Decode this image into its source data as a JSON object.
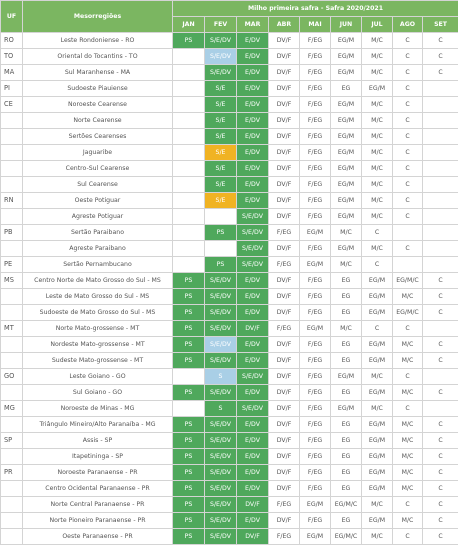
{
  "header": {
    "uf": "UF",
    "mesorregioes": "Mesorregiões",
    "title": "Milho primeira safra - Safra 2020/2021",
    "months": [
      "JAN",
      "FEV",
      "MAR",
      "ABR",
      "MAI",
      "JUN",
      "JUL",
      "AGO",
      "SET"
    ]
  },
  "colors": {
    "green": "#4fa85c",
    "yellow": "#f0b323",
    "blue": "#a9cfe6",
    "header_green": "#7bb661"
  },
  "rows": [
    {
      "uf": "RO",
      "meso": "Leste Rondoniense - RO",
      "cells": [
        [
          "PS",
          "g"
        ],
        [
          "S/E/DV",
          "g"
        ],
        [
          "E/DV",
          "g"
        ],
        [
          "DV/F",
          "w"
        ],
        [
          "F/EG",
          "w"
        ],
        [
          "EG/M",
          "w"
        ],
        [
          "M/C",
          "w"
        ],
        [
          "C",
          "w"
        ],
        [
          "C",
          "w"
        ]
      ]
    },
    {
      "uf": "TO",
      "meso": "Oriental do Tocantins - TO",
      "cells": [
        [
          "",
          "w"
        ],
        [
          "S/E/DV",
          "b"
        ],
        [
          "E/DV",
          "g"
        ],
        [
          "DV/F",
          "w"
        ],
        [
          "F/EG",
          "w"
        ],
        [
          "EG/M",
          "w"
        ],
        [
          "M/C",
          "w"
        ],
        [
          "C",
          "w"
        ],
        [
          "C",
          "w"
        ]
      ]
    },
    {
      "uf": "MA",
      "meso": "Sul Maranhense - MA",
      "cells": [
        [
          "",
          "w"
        ],
        [
          "S/E/DV",
          "g"
        ],
        [
          "E/DV",
          "g"
        ],
        [
          "DV/F",
          "w"
        ],
        [
          "F/EG",
          "w"
        ],
        [
          "EG/M",
          "w"
        ],
        [
          "M/C",
          "w"
        ],
        [
          "C",
          "w"
        ],
        [
          "C",
          "w"
        ]
      ]
    },
    {
      "uf": "PI",
      "meso": "Sudoeste Piauiense",
      "cells": [
        [
          "",
          "w"
        ],
        [
          "S/E",
          "g"
        ],
        [
          "E/DV",
          "g"
        ],
        [
          "DV/F",
          "w"
        ],
        [
          "F/EG",
          "w"
        ],
        [
          "EG",
          "w"
        ],
        [
          "EG/M",
          "w"
        ],
        [
          "C",
          "w"
        ],
        [
          "",
          "w"
        ]
      ]
    },
    {
      "uf": "CE",
      "meso": "Noroeste Cearense",
      "cells": [
        [
          "",
          "w"
        ],
        [
          "S/E",
          "g"
        ],
        [
          "E/DV",
          "g"
        ],
        [
          "DV/F",
          "w"
        ],
        [
          "F/EG",
          "w"
        ],
        [
          "EG/M",
          "w"
        ],
        [
          "M/C",
          "w"
        ],
        [
          "C",
          "w"
        ],
        [
          "",
          "w"
        ]
      ]
    },
    {
      "uf": "",
      "meso": "Norte Cearense",
      "cells": [
        [
          "",
          "w"
        ],
        [
          "S/E",
          "g"
        ],
        [
          "E/DV",
          "g"
        ],
        [
          "DV/F",
          "w"
        ],
        [
          "F/EG",
          "w"
        ],
        [
          "EG/M",
          "w"
        ],
        [
          "M/C",
          "w"
        ],
        [
          "C",
          "w"
        ],
        [
          "",
          "w"
        ]
      ]
    },
    {
      "uf": "",
      "meso": "Sertões Cearenses",
      "cells": [
        [
          "",
          "w"
        ],
        [
          "S/E",
          "g"
        ],
        [
          "E/DV",
          "g"
        ],
        [
          "DV/F",
          "w"
        ],
        [
          "F/EG",
          "w"
        ],
        [
          "EG/M",
          "w"
        ],
        [
          "M/C",
          "w"
        ],
        [
          "C",
          "w"
        ],
        [
          "",
          "w"
        ]
      ]
    },
    {
      "uf": "",
      "meso": "Jaguaribe",
      "cells": [
        [
          "",
          "w"
        ],
        [
          "S/E",
          "y"
        ],
        [
          "E/DV",
          "g"
        ],
        [
          "DV/F",
          "w"
        ],
        [
          "F/EG",
          "w"
        ],
        [
          "EG/M",
          "w"
        ],
        [
          "M/C",
          "w"
        ],
        [
          "C",
          "w"
        ],
        [
          "",
          "w"
        ]
      ]
    },
    {
      "uf": "",
      "meso": "Centro-Sul Cearense",
      "cells": [
        [
          "",
          "w"
        ],
        [
          "S/E",
          "g"
        ],
        [
          "E/DV",
          "g"
        ],
        [
          "DV/F",
          "w"
        ],
        [
          "F/EG",
          "w"
        ],
        [
          "EG/M",
          "w"
        ],
        [
          "M/C",
          "w"
        ],
        [
          "C",
          "w"
        ],
        [
          "",
          "w"
        ]
      ]
    },
    {
      "uf": "",
      "meso": "Sul Cearense",
      "cells": [
        [
          "",
          "w"
        ],
        [
          "S/E",
          "g"
        ],
        [
          "E/DV",
          "g"
        ],
        [
          "DV/F",
          "w"
        ],
        [
          "F/EG",
          "w"
        ],
        [
          "EG/M",
          "w"
        ],
        [
          "M/C",
          "w"
        ],
        [
          "C",
          "w"
        ],
        [
          "",
          "w"
        ]
      ]
    },
    {
      "uf": "RN",
      "meso": "Oeste Potiguar",
      "cells": [
        [
          "",
          "w"
        ],
        [
          "S/E",
          "y"
        ],
        [
          "E/DV",
          "g"
        ],
        [
          "DV/F",
          "w"
        ],
        [
          "F/EG",
          "w"
        ],
        [
          "EG/M",
          "w"
        ],
        [
          "M/C",
          "w"
        ],
        [
          "C",
          "w"
        ],
        [
          "",
          "w"
        ]
      ]
    },
    {
      "uf": "",
      "meso": "Agreste Potiguar",
      "cells": [
        [
          "",
          "w"
        ],
        [
          "",
          "w"
        ],
        [
          "S/E/DV",
          "g"
        ],
        [
          "DV/F",
          "w"
        ],
        [
          "F/EG",
          "w"
        ],
        [
          "EG/M",
          "w"
        ],
        [
          "M/C",
          "w"
        ],
        [
          "C",
          "w"
        ],
        [
          "",
          "w"
        ]
      ]
    },
    {
      "uf": "PB",
      "meso": "Sertão Paraibano",
      "cells": [
        [
          "",
          "w"
        ],
        [
          "PS",
          "g"
        ],
        [
          "S/E/DV",
          "g"
        ],
        [
          "F/EG",
          "w"
        ],
        [
          "EG/M",
          "w"
        ],
        [
          "M/C",
          "w"
        ],
        [
          "C",
          "w"
        ],
        [
          "",
          "w"
        ],
        [
          "",
          "w"
        ]
      ]
    },
    {
      "uf": "",
      "meso": "Agreste Paraibano",
      "cells": [
        [
          "",
          "w"
        ],
        [
          "",
          "w"
        ],
        [
          "S/E/DV",
          "g"
        ],
        [
          "DV/F",
          "w"
        ],
        [
          "F/EG",
          "w"
        ],
        [
          "EG/M",
          "w"
        ],
        [
          "M/C",
          "w"
        ],
        [
          "C",
          "w"
        ],
        [
          "",
          "w"
        ]
      ]
    },
    {
      "uf": "PE",
      "meso": "Sertão Pernambucano",
      "cells": [
        [
          "",
          "w"
        ],
        [
          "PS",
          "g"
        ],
        [
          "S/E/DV",
          "g"
        ],
        [
          "F/EG",
          "w"
        ],
        [
          "EG/M",
          "w"
        ],
        [
          "M/C",
          "w"
        ],
        [
          "C",
          "w"
        ],
        [
          "",
          "w"
        ],
        [
          "",
          "w"
        ]
      ]
    },
    {
      "uf": "MS",
      "meso": "Centro Norte de Mato Grosso do Sul - MS",
      "cells": [
        [
          "PS",
          "g"
        ],
        [
          "S/E/DV",
          "g"
        ],
        [
          "E/DV",
          "g"
        ],
        [
          "DV/F",
          "w"
        ],
        [
          "F/EG",
          "w"
        ],
        [
          "EG",
          "w"
        ],
        [
          "EG/M",
          "w"
        ],
        [
          "EG/M/C",
          "w"
        ],
        [
          "C",
          "w"
        ]
      ]
    },
    {
      "uf": "",
      "meso": "Leste de Mato Grosso do Sul - MS",
      "cells": [
        [
          "PS",
          "g"
        ],
        [
          "S/E/DV",
          "g"
        ],
        [
          "E/DV",
          "g"
        ],
        [
          "DV/F",
          "w"
        ],
        [
          "F/EG",
          "w"
        ],
        [
          "EG",
          "w"
        ],
        [
          "EG/M",
          "w"
        ],
        [
          "M/C",
          "w"
        ],
        [
          "C",
          "w"
        ]
      ]
    },
    {
      "uf": "",
      "meso": "Sudoeste de Mato Grosso do Sul - MS",
      "cells": [
        [
          "PS",
          "g"
        ],
        [
          "S/E/DV",
          "g"
        ],
        [
          "E/DV",
          "g"
        ],
        [
          "DV/F",
          "w"
        ],
        [
          "F/EG",
          "w"
        ],
        [
          "EG",
          "w"
        ],
        [
          "EG/M",
          "w"
        ],
        [
          "EG/M/C",
          "w"
        ],
        [
          "C",
          "w"
        ]
      ]
    },
    {
      "uf": "MT",
      "meso": "Norte Mato-grossense - MT",
      "cells": [
        [
          "PS",
          "g"
        ],
        [
          "S/E/DV",
          "g"
        ],
        [
          "DV/F",
          "g"
        ],
        [
          "F/EG",
          "w"
        ],
        [
          "EG/M",
          "w"
        ],
        [
          "M/C",
          "w"
        ],
        [
          "C",
          "w"
        ],
        [
          "C",
          "w"
        ],
        [
          "",
          "w"
        ]
      ]
    },
    {
      "uf": "",
      "meso": "Nordeste Mato-grossense - MT",
      "cells": [
        [
          "PS",
          "g"
        ],
        [
          "S/E/DV",
          "b"
        ],
        [
          "E/DV",
          "g"
        ],
        [
          "DV/F",
          "w"
        ],
        [
          "F/EG",
          "w"
        ],
        [
          "EG",
          "w"
        ],
        [
          "EG/M",
          "w"
        ],
        [
          "M/C",
          "w"
        ],
        [
          "C",
          "w"
        ]
      ]
    },
    {
      "uf": "",
      "meso": "Sudeste Mato-grossense - MT",
      "cells": [
        [
          "PS",
          "g"
        ],
        [
          "S/E/DV",
          "g"
        ],
        [
          "E/DV",
          "g"
        ],
        [
          "DV/F",
          "w"
        ],
        [
          "F/EG",
          "w"
        ],
        [
          "EG",
          "w"
        ],
        [
          "EG/M",
          "w"
        ],
        [
          "M/C",
          "w"
        ],
        [
          "C",
          "w"
        ]
      ]
    },
    {
      "uf": "GO",
      "meso": "Leste Goiano - GO",
      "cells": [
        [
          "",
          "w"
        ],
        [
          "S",
          "b"
        ],
        [
          "S/E/DV",
          "g"
        ],
        [
          "DV/F",
          "w"
        ],
        [
          "F/EG",
          "w"
        ],
        [
          "EG/M",
          "w"
        ],
        [
          "M/C",
          "w"
        ],
        [
          "C",
          "w"
        ],
        [
          "",
          "w"
        ]
      ]
    },
    {
      "uf": "",
      "meso": "Sul Goiano - GO",
      "cells": [
        [
          "PS",
          "g"
        ],
        [
          "S/E/DV",
          "g"
        ],
        [
          "E/DV",
          "g"
        ],
        [
          "DV/F",
          "w"
        ],
        [
          "F/EG",
          "w"
        ],
        [
          "EG",
          "w"
        ],
        [
          "EG/M",
          "w"
        ],
        [
          "M/C",
          "w"
        ],
        [
          "C",
          "w"
        ]
      ]
    },
    {
      "uf": "MG",
      "meso": "Noroeste de Minas - MG",
      "cells": [
        [
          "",
          "w"
        ],
        [
          "S",
          "g"
        ],
        [
          "S/E/DV",
          "g"
        ],
        [
          "DV/F",
          "w"
        ],
        [
          "F/EG",
          "w"
        ],
        [
          "EG/M",
          "w"
        ],
        [
          "M/C",
          "w"
        ],
        [
          "C",
          "w"
        ],
        [
          "",
          "w"
        ]
      ]
    },
    {
      "uf": "",
      "meso": "Triângulo Mineiro/Alto Paranaíba - MG",
      "cells": [
        [
          "PS",
          "g"
        ],
        [
          "S/E/DV",
          "g"
        ],
        [
          "E/DV",
          "g"
        ],
        [
          "DV/F",
          "w"
        ],
        [
          "F/EG",
          "w"
        ],
        [
          "EG",
          "w"
        ],
        [
          "EG/M",
          "w"
        ],
        [
          "M/C",
          "w"
        ],
        [
          "C",
          "w"
        ]
      ]
    },
    {
      "uf": "SP",
      "meso": "Assis - SP",
      "cells": [
        [
          "PS",
          "g"
        ],
        [
          "S/E/DV",
          "g"
        ],
        [
          "E/DV",
          "g"
        ],
        [
          "DV/F",
          "w"
        ],
        [
          "F/EG",
          "w"
        ],
        [
          "EG",
          "w"
        ],
        [
          "EG/M",
          "w"
        ],
        [
          "M/C",
          "w"
        ],
        [
          "C",
          "w"
        ]
      ]
    },
    {
      "uf": "",
      "meso": "Itapetininga - SP",
      "cells": [
        [
          "PS",
          "g"
        ],
        [
          "S/E/DV",
          "g"
        ],
        [
          "E/DV",
          "g"
        ],
        [
          "DV/F",
          "w"
        ],
        [
          "F/EG",
          "w"
        ],
        [
          "EG",
          "w"
        ],
        [
          "EG/M",
          "w"
        ],
        [
          "M/C",
          "w"
        ],
        [
          "C",
          "w"
        ]
      ]
    },
    {
      "uf": "PR",
      "meso": "Noroeste Paranaense - PR",
      "cells": [
        [
          "PS",
          "g"
        ],
        [
          "S/E/DV",
          "g"
        ],
        [
          "E/DV",
          "g"
        ],
        [
          "DV/F",
          "w"
        ],
        [
          "F/EG",
          "w"
        ],
        [
          "EG",
          "w"
        ],
        [
          "EG/M",
          "w"
        ],
        [
          "M/C",
          "w"
        ],
        [
          "C",
          "w"
        ]
      ]
    },
    {
      "uf": "",
      "meso": "Centro Ocidental Paranaense - PR",
      "cells": [
        [
          "PS",
          "g"
        ],
        [
          "S/E/DV",
          "g"
        ],
        [
          "E/DV",
          "g"
        ],
        [
          "DV/F",
          "w"
        ],
        [
          "F/EG",
          "w"
        ],
        [
          "EG",
          "w"
        ],
        [
          "EG/M",
          "w"
        ],
        [
          "M/C",
          "w"
        ],
        [
          "C",
          "w"
        ]
      ]
    },
    {
      "uf": "",
      "meso": "Norte Central Paranaense - PR",
      "cells": [
        [
          "PS",
          "g"
        ],
        [
          "S/E/DV",
          "g"
        ],
        [
          "DV/F",
          "g"
        ],
        [
          "F/EG",
          "w"
        ],
        [
          "EG/M",
          "w"
        ],
        [
          "EG/M/C",
          "w"
        ],
        [
          "M/C",
          "w"
        ],
        [
          "C",
          "w"
        ],
        [
          "C",
          "w"
        ]
      ]
    },
    {
      "uf": "",
      "meso": "Norte Pioneiro Paranaense - PR",
      "cells": [
        [
          "PS",
          "g"
        ],
        [
          "S/E/DV",
          "g"
        ],
        [
          "E/DV",
          "g"
        ],
        [
          "DV/F",
          "w"
        ],
        [
          "F/EG",
          "w"
        ],
        [
          "EG",
          "w"
        ],
        [
          "EG/M",
          "w"
        ],
        [
          "M/C",
          "w"
        ],
        [
          "C",
          "w"
        ]
      ]
    },
    {
      "uf": "",
      "meso": "Oeste Paranaense - PR",
      "cells": [
        [
          "PS",
          "g"
        ],
        [
          "S/E/DV",
          "g"
        ],
        [
          "DV/F",
          "g"
        ],
        [
          "F/EG",
          "w"
        ],
        [
          "EG/M",
          "w"
        ],
        [
          "EG/M/C",
          "w"
        ],
        [
          "M/C",
          "w"
        ],
        [
          "C",
          "w"
        ],
        [
          "C",
          "w"
        ]
      ]
    }
  ]
}
